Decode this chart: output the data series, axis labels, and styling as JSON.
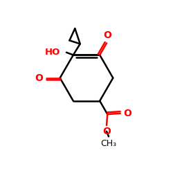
{
  "bg_color": "#ffffff",
  "bond_color": "#000000",
  "red_color": "#ff0000",
  "line_width": 1.8,
  "figsize": [
    2.5,
    2.5
  ],
  "dpi": 100,
  "xlim": [
    0,
    10
  ],
  "ylim": [
    0,
    10
  ]
}
